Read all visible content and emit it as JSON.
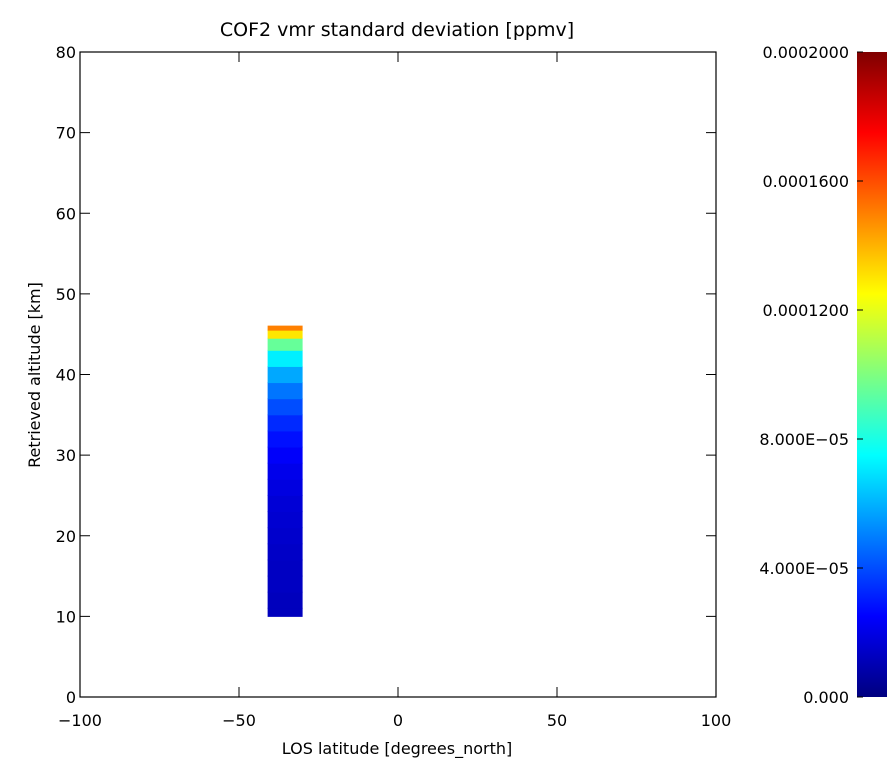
{
  "chart_data": {
    "type": "heatmap",
    "title": "COF2 vmr standard deviation [ppmv]",
    "xlabel": "LOS latitude [degrees_north]",
    "ylabel": "Retrieved altitude [km]",
    "xlim": [
      -100,
      100
    ],
    "ylim": [
      0,
      80
    ],
    "x_ticks": [
      -100,
      -50,
      0,
      50,
      100
    ],
    "x_tick_labels": [
      "−100",
      "−50",
      "0",
      "50",
      "100"
    ],
    "y_ticks": [
      0,
      10,
      20,
      30,
      40,
      50,
      60,
      70,
      80
    ],
    "y_tick_labels": [
      "0",
      "10",
      "20",
      "30",
      "40",
      "50",
      "60",
      "70",
      "80"
    ],
    "colorbar": {
      "colormap": "jet",
      "range": [
        0,
        0.0002
      ],
      "ticks": [
        0,
        4e-05,
        8e-05,
        0.00012,
        0.00016,
        0.0002
      ],
      "tick_labels": [
        "0.000",
        "4.000E−05",
        "8.000E−05",
        "0.0001200",
        "0.0001600",
        "0.0002000"
      ]
    },
    "cells": {
      "x_range": [
        -41,
        -30
      ],
      "altitude_km": [
        10,
        12,
        14,
        16,
        18,
        20,
        22,
        24,
        26,
        28,
        30,
        32,
        34,
        36,
        38,
        40,
        42,
        44,
        45,
        46
      ],
      "values": [
        1.2e-05,
        1.2e-05,
        1.3e-05,
        1.3e-05,
        1.4e-05,
        1.5e-05,
        1.6e-05,
        1.7e-05,
        1.9e-05,
        2.1e-05,
        2.4e-05,
        2.8e-05,
        3.3e-05,
        4e-05,
        4.8e-05,
        5.8e-05,
        7.2e-05,
        9.5e-05,
        0.00013,
        0.00015
      ]
    }
  }
}
